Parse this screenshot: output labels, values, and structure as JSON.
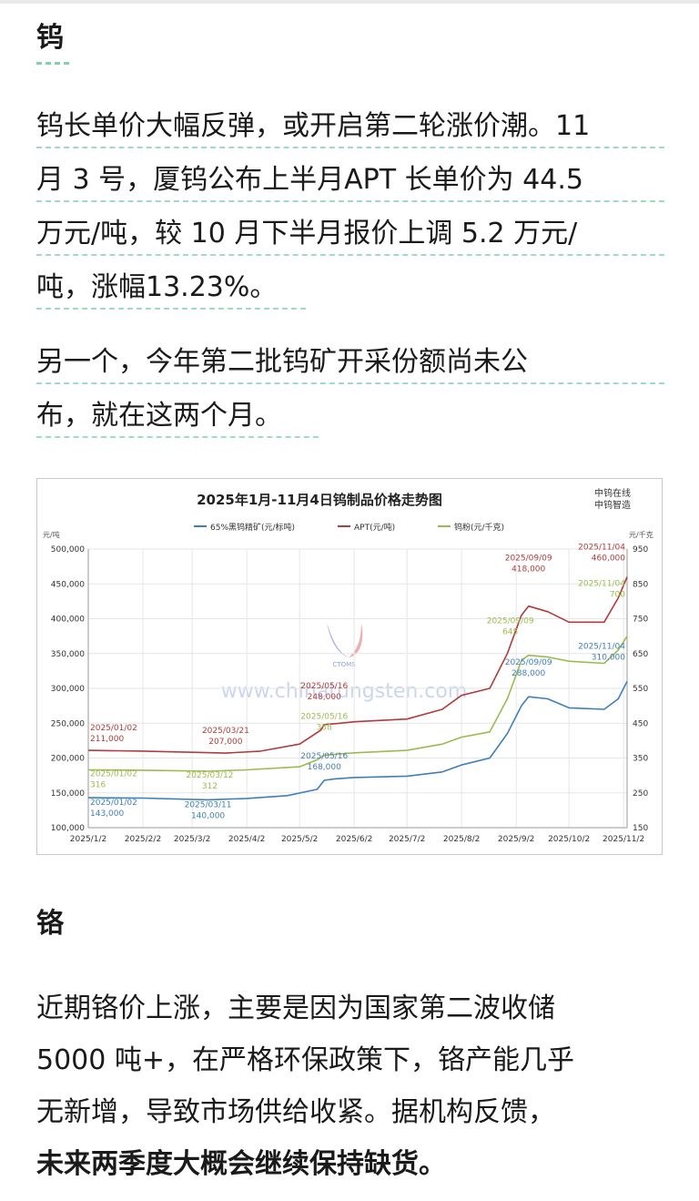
{
  "sections": [
    {
      "heading": "钨",
      "paragraphs": [
        [
          "钨长单价大幅反弹，或开启第二轮涨价潮。11",
          "月 3 号，厦钨公布上半月APT 长单价为 44.5",
          "万元/吨，较 10 月下半月报价上调 5.2 万元/",
          "吨，涨幅13.23%。"
        ],
        [
          "另一个，今年第二批钨矿开采份额尚未公",
          "布，就在这两个月。"
        ]
      ]
    },
    {
      "heading": "铬",
      "paragraphs": [
        [
          "近期铬价上涨，主要是因为国家第二波收储",
          "5000 吨+，在严格环保政策下，铬产能几乎",
          "无新增，导致市场供给收紧。据机构反馈，",
          "未来两季度大概会继续保持缺货。"
        ]
      ]
    }
  ],
  "chart_data": {
    "type": "line",
    "title": "2025年1月-11月4日钨制品价格走势图",
    "source_labels": [
      "中钨在线",
      "中钨智造"
    ],
    "watermark": "www.chinatungsten.com",
    "watermark_logo_text": "CTOMS",
    "left_unit": "元/吨",
    "right_unit": "元/千克",
    "x_ticks": [
      "2025/1/2",
      "2025/2/2",
      "2025/3/2",
      "2025/4/2",
      "2025/5/2",
      "2025/6/2",
      "2025/7/2",
      "2025/8/2",
      "2025/9/2",
      "2025/10/2",
      "2025/11/2"
    ],
    "y_left_ticks": [
      "500,000",
      "450,000",
      "400,000",
      "350,000",
      "300,000",
      "250,000",
      "200,000",
      "150,000",
      "100,000"
    ],
    "y_right_ticks": [
      "950",
      "850",
      "750",
      "650",
      "550",
      "450",
      "350",
      "250",
      "150"
    ],
    "ylim_left": [
      100000,
      500000
    ],
    "ylim_right": [
      150,
      950
    ],
    "colors": {
      "ore": "#3f7fb9",
      "apt": "#b23b3b",
      "powder": "#9bbb4f"
    },
    "series": [
      {
        "name": "65%黑钨精矿(元/标吨)",
        "key": "ore",
        "axis": "left",
        "points": [
          [
            "2025-01-02",
            143000
          ],
          [
            "2025-02-02",
            142500
          ],
          [
            "2025-03-11",
            140000
          ],
          [
            "2025-04-02",
            142000
          ],
          [
            "2025-04-25",
            146000
          ],
          [
            "2025-05-12",
            155000
          ],
          [
            "2025-05-16",
            168000
          ],
          [
            "2025-05-22",
            170000
          ],
          [
            "2025-06-02",
            172000
          ],
          [
            "2025-07-02",
            174000
          ],
          [
            "2025-07-22",
            180000
          ],
          [
            "2025-08-02",
            190000
          ],
          [
            "2025-08-18",
            200000
          ],
          [
            "2025-08-28",
            235000
          ],
          [
            "2025-09-05",
            275000
          ],
          [
            "2025-09-09",
            288000
          ],
          [
            "2025-09-20",
            285000
          ],
          [
            "2025-10-02",
            272000
          ],
          [
            "2025-10-22",
            270000
          ],
          [
            "2025-10-30",
            285000
          ],
          [
            "2025-11-04",
            310000
          ]
        ]
      },
      {
        "name": "APT(元/吨)",
        "key": "apt",
        "axis": "left",
        "points": [
          [
            "2025-01-02",
            211000
          ],
          [
            "2025-02-02",
            210000
          ],
          [
            "2025-03-21",
            207000
          ],
          [
            "2025-04-10",
            210000
          ],
          [
            "2025-05-02",
            220000
          ],
          [
            "2025-05-14",
            240000
          ],
          [
            "2025-05-16",
            248000
          ],
          [
            "2025-05-25",
            250000
          ],
          [
            "2025-06-02",
            252000
          ],
          [
            "2025-07-02",
            256000
          ],
          [
            "2025-07-22",
            270000
          ],
          [
            "2025-08-02",
            290000
          ],
          [
            "2025-08-18",
            300000
          ],
          [
            "2025-08-28",
            350000
          ],
          [
            "2025-09-05",
            405000
          ],
          [
            "2025-09-09",
            418000
          ],
          [
            "2025-09-20",
            410000
          ],
          [
            "2025-10-02",
            395000
          ],
          [
            "2025-10-22",
            395000
          ],
          [
            "2025-10-30",
            430000
          ],
          [
            "2025-11-04",
            460000
          ]
        ]
      },
      {
        "name": "钨粉(元/千克)",
        "key": "powder",
        "axis": "right",
        "points": [
          [
            "2025-01-02",
            316
          ],
          [
            "2025-02-02",
            315
          ],
          [
            "2025-03-12",
            312
          ],
          [
            "2025-04-02",
            316
          ],
          [
            "2025-05-02",
            325
          ],
          [
            "2025-05-12",
            345
          ],
          [
            "2025-05-16",
            358
          ],
          [
            "2025-05-25",
            362
          ],
          [
            "2025-06-02",
            365
          ],
          [
            "2025-07-02",
            372
          ],
          [
            "2025-07-22",
            390
          ],
          [
            "2025-08-02",
            410
          ],
          [
            "2025-08-18",
            425
          ],
          [
            "2025-08-28",
            520
          ],
          [
            "2025-09-05",
            630
          ],
          [
            "2025-09-09",
            645
          ],
          [
            "2025-09-20",
            640
          ],
          [
            "2025-10-02",
            628
          ],
          [
            "2025-10-22",
            622
          ],
          [
            "2025-10-30",
            660
          ],
          [
            "2025-11-04",
            700
          ]
        ]
      }
    ],
    "annotations": [
      {
        "series": "apt",
        "date": "2025-01-02",
        "date_text": "2025/01/02",
        "value_text": "211,000",
        "dx": 0,
        "dy": -22
      },
      {
        "series": "apt",
        "date": "2025-03-21",
        "date_text": "2025/03/21",
        "value_text": "207,000",
        "dx": 0,
        "dy": -22
      },
      {
        "series": "apt",
        "date": "2025-05-16",
        "date_text": "2025/05/16",
        "value_text": "248,000",
        "dx": 0,
        "dy": -40
      },
      {
        "series": "apt",
        "date": "2025-09-09",
        "date_text": "2025/09/09",
        "value_text": "418,000",
        "dx": 0,
        "dy": -50
      },
      {
        "series": "apt",
        "date": "2025-11-04",
        "date_text": "2025/11/04",
        "value_text": "460,000",
        "dx": -18,
        "dy": -30
      },
      {
        "series": "powder",
        "date": "2025-01-02",
        "date_text": "2025/01/02",
        "value_text": "316",
        "dx": 0,
        "dy": 7
      },
      {
        "series": "powder",
        "date": "2025-03-12",
        "date_text": "2025/03/12",
        "value_text": "312",
        "dx": 0,
        "dy": 7
      },
      {
        "series": "powder",
        "date": "2025-05-16",
        "date_text": "2025/05/16",
        "value_text": "358",
        "dx": 0,
        "dy": -40
      },
      {
        "series": "powder",
        "date": "2025-09-09",
        "date_text": "2025/09/09",
        "value_text": "645",
        "dx": -20,
        "dy": -35
      },
      {
        "series": "powder",
        "date": "2025-11-04",
        "date_text": "2025/11/04",
        "value_text": "700",
        "dx": -12,
        "dy": -55
      },
      {
        "series": "ore",
        "date": "2025-01-02",
        "date_text": "2025/01/02",
        "value_text": "143,000",
        "dx": 0,
        "dy": 8
      },
      {
        "series": "ore",
        "date": "2025-03-11",
        "date_text": "2025/03/11",
        "value_text": "140,000",
        "dx": 0,
        "dy": 8
      },
      {
        "series": "ore",
        "date": "2025-05-16",
        "date_text": "2025/05/16",
        "value_text": "168,000",
        "dx": 0,
        "dy": -24
      },
      {
        "series": "ore",
        "date": "2025-09-09",
        "date_text": "2025/09/09",
        "value_text": "288,000",
        "dx": 0,
        "dy": -35
      },
      {
        "series": "ore",
        "date": "2025-11-04",
        "date_text": "2025/11/04",
        "value_text": "310,000",
        "dx": -22,
        "dy": -36
      }
    ]
  }
}
